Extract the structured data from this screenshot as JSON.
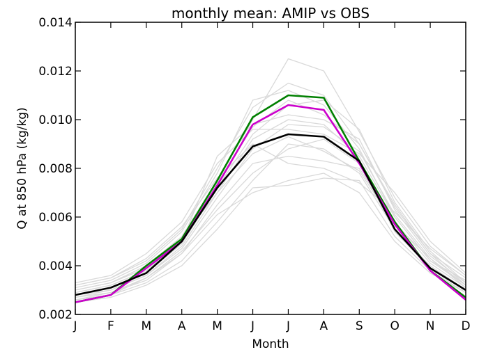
{
  "chart_data": {
    "type": "line",
    "title": "monthly mean: AMIP vs OBS",
    "xlabel": "Month",
    "ylabel": "Q at 850 hPa (kg/kg)",
    "categories": [
      "J",
      "F",
      "M",
      "A",
      "M",
      "J",
      "J",
      "A",
      "S",
      "O",
      "N",
      "D"
    ],
    "ylim": [
      0.002,
      0.014
    ],
    "yticks": [
      "0.002",
      "0.004",
      "0.006",
      "0.008",
      "0.010",
      "0.012",
      "0.014"
    ],
    "grid": false,
    "series": [
      {
        "color": "#d9d9d9",
        "values": [
          0.0032,
          0.0035,
          0.0042,
          0.0055,
          0.008,
          0.0105,
          0.0115,
          0.011,
          0.009,
          0.0065,
          0.0045,
          0.0035
        ]
      },
      {
        "color": "#d9d9d9",
        "values": [
          0.003,
          0.0033,
          0.004,
          0.0052,
          0.0075,
          0.01,
          0.0125,
          0.012,
          0.0095,
          0.0068,
          0.0048,
          0.0036
        ]
      },
      {
        "color": "#d9d9d9",
        "values": [
          0.0028,
          0.003,
          0.0036,
          0.0048,
          0.007,
          0.0092,
          0.01,
          0.0098,
          0.0085,
          0.006,
          0.0042,
          0.0032
        ]
      },
      {
        "color": "#d9d9d9",
        "values": [
          0.0026,
          0.0028,
          0.0033,
          0.0042,
          0.0058,
          0.0075,
          0.009,
          0.0088,
          0.0078,
          0.0055,
          0.004,
          0.003
        ]
      },
      {
        "color": "#d9d9d9",
        "values": [
          0.0025,
          0.0027,
          0.0032,
          0.004,
          0.0055,
          0.0072,
          0.0073,
          0.0076,
          0.0075,
          0.0052,
          0.0038,
          0.0029
        ]
      },
      {
        "color": "#d9d9d9",
        "values": [
          0.0029,
          0.0032,
          0.0038,
          0.005,
          0.0085,
          0.0098,
          0.0102,
          0.01,
          0.0092,
          0.0063,
          0.0044,
          0.0033
        ]
      },
      {
        "color": "#d9d9d9",
        "values": [
          0.0031,
          0.0034,
          0.0041,
          0.0054,
          0.0078,
          0.0108,
          0.0112,
          0.0106,
          0.0088,
          0.006,
          0.0042,
          0.0034
        ]
      },
      {
        "color": "#d9d9d9",
        "values": [
          0.0027,
          0.0029,
          0.0034,
          0.0045,
          0.0065,
          0.0082,
          0.0085,
          0.0083,
          0.008,
          0.0058,
          0.0041,
          0.0031
        ]
      },
      {
        "color": "#d9d9d9",
        "values": [
          0.0033,
          0.0036,
          0.0045,
          0.0058,
          0.0082,
          0.0096,
          0.0096,
          0.0094,
          0.0086,
          0.007,
          0.005,
          0.0037
        ]
      },
      {
        "color": "#d9d9d9",
        "values": [
          0.0026,
          0.0028,
          0.0035,
          0.0046,
          0.0063,
          0.0078,
          0.0088,
          0.0092,
          0.0082,
          0.0054,
          0.0039,
          0.003
        ]
      },
      {
        "color": "#d9d9d9",
        "values": [
          0.0028,
          0.0031,
          0.0037,
          0.0049,
          0.0072,
          0.0094,
          0.0106,
          0.0108,
          0.0096,
          0.0066,
          0.0046,
          0.0033
        ]
      },
      {
        "color": "#d9d9d9",
        "values": [
          0.003,
          0.0033,
          0.0039,
          0.0051,
          0.007,
          0.0086,
          0.0093,
          0.0087,
          0.0079,
          0.0057,
          0.0043,
          0.0032
        ]
      },
      {
        "color": "#d9d9d9",
        "values": [
          0.0032,
          0.0035,
          0.0043,
          0.0056,
          0.0076,
          0.009,
          0.0082,
          0.008,
          0.0074,
          0.0062,
          0.0047,
          0.0036
        ]
      },
      {
        "color": "#d9d9d9",
        "values": [
          0.0027,
          0.003,
          0.0036,
          0.0047,
          0.0068,
          0.0088,
          0.0098,
          0.0097,
          0.0087,
          0.0061,
          0.0043,
          0.0031
        ]
      },
      {
        "color": "#d9d9d9",
        "values": [
          0.0029,
          0.0032,
          0.0038,
          0.005,
          0.0074,
          0.0097,
          0.0108,
          0.0102,
          0.009,
          0.0064,
          0.0045,
          0.0032
        ]
      },
      {
        "color": "#d9d9d9",
        "values": [
          0.0026,
          0.0029,
          0.0035,
          0.0045,
          0.0061,
          0.007,
          0.0075,
          0.0078,
          0.007,
          0.005,
          0.0037,
          0.0029
        ]
      },
      {
        "color": "#008000",
        "values": [
          0.0025,
          0.0028,
          0.004,
          0.0051,
          0.0075,
          0.0101,
          0.011,
          0.0109,
          0.0083,
          0.0058,
          0.0038,
          0.0027
        ]
      },
      {
        "color": "#cc00cc",
        "values": [
          0.0025,
          0.0028,
          0.0039,
          0.005,
          0.0073,
          0.0098,
          0.0106,
          0.0104,
          0.0082,
          0.0057,
          0.0038,
          0.0026
        ]
      },
      {
        "color": "#000000",
        "values": [
          0.0028,
          0.0031,
          0.0037,
          0.005,
          0.0072,
          0.0089,
          0.0094,
          0.0093,
          0.0083,
          0.0055,
          0.0039,
          0.003
        ]
      }
    ]
  }
}
